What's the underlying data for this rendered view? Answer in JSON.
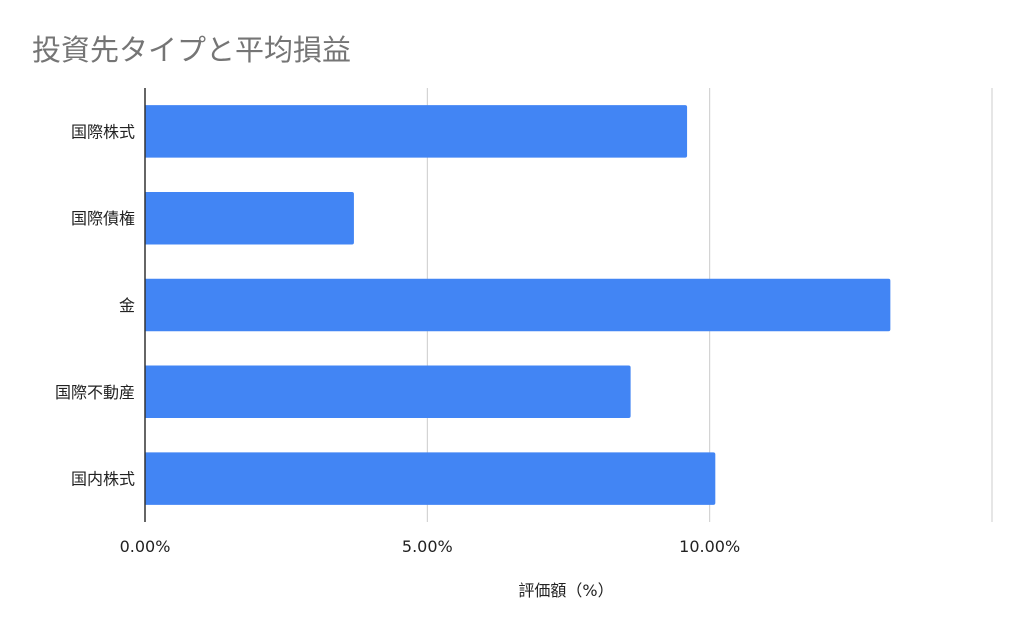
{
  "chart_data": {
    "type": "bar",
    "orientation": "horizontal",
    "title": "投資先タイプと平均損益",
    "xlabel": "評価額（%）",
    "ylabel": "",
    "categories": [
      "国際株式",
      "国際債権",
      "金",
      "国際不動産",
      "国内株式"
    ],
    "series": [
      {
        "values": [
          9.6,
          3.7,
          13.2,
          8.6,
          10.1
        ]
      }
    ],
    "xlim": [
      0,
      15
    ],
    "x_ticks": [
      0,
      5,
      10,
      15
    ],
    "x_tick_labels": [
      "0.00%",
      "5.00%",
      "10.00%",
      ""
    ],
    "grid": "vertical",
    "legend": "none",
    "bar_color": "#4285f4"
  }
}
